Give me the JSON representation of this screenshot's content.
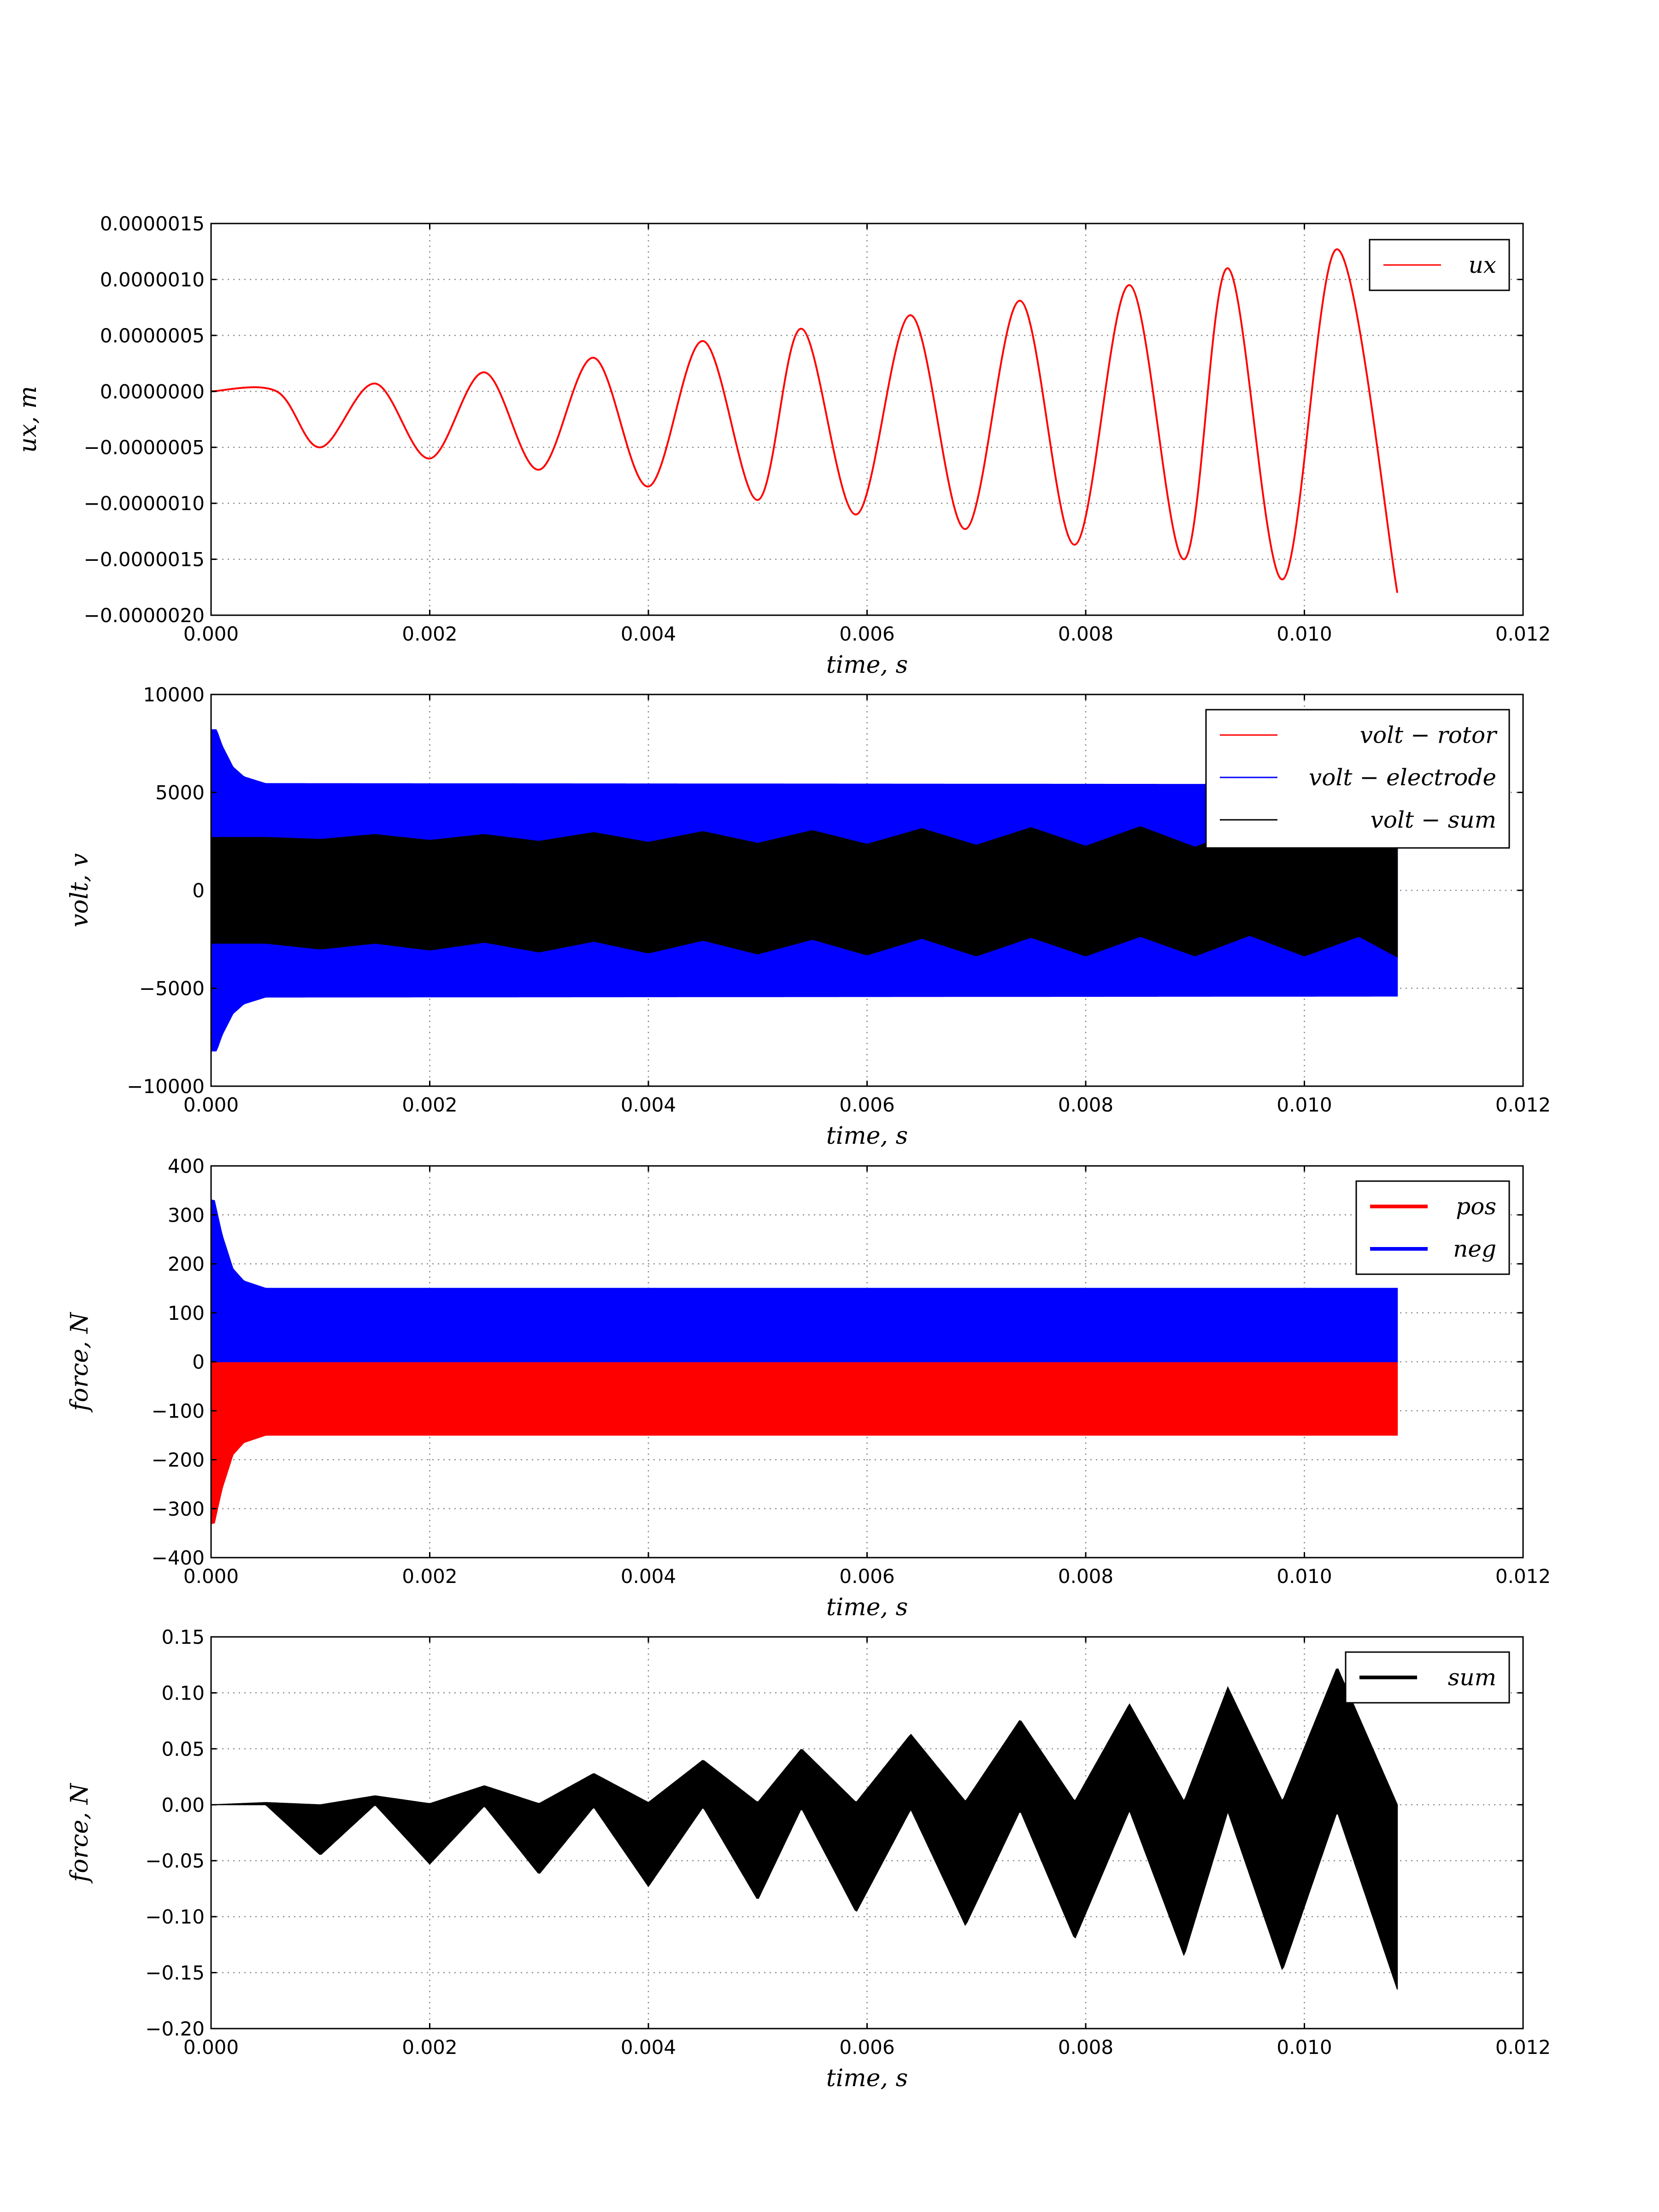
{
  "chart_data": [
    {
      "type": "line",
      "xlabel": "time, s",
      "ylabel": "ux, m",
      "xlim": [
        0,
        0.012
      ],
      "ylim": [
        -2e-06,
        1.5e-06
      ],
      "x_ticks": [
        "0.000",
        "0.002",
        "0.004",
        "0.006",
        "0.008",
        "0.010",
        "0.012"
      ],
      "y_ticks": [
        "0.0000015",
        "0.0000010",
        "0.0000005",
        "0.0000000",
        "−0.0000005",
        "−0.0000010",
        "−0.0000015",
        "−0.0000020"
      ],
      "grid": true,
      "legend_position": "top-right",
      "series": [
        {
          "name": "ux",
          "color": "#ff0000",
          "style": "line",
          "x": [
            0,
            0.0006,
            0.001,
            0.0015,
            0.002,
            0.0025,
            0.003,
            0.0035,
            0.004,
            0.0045,
            0.005,
            0.0054,
            0.0059,
            0.0064,
            0.0069,
            0.0074,
            0.0079,
            0.0084,
            0.0089,
            0.0093,
            0.0098,
            0.0103,
            0.01085
          ],
          "y": [
            0,
            0,
            -5e-07,
            7e-08,
            -6e-07,
            1.7e-07,
            -7e-07,
            3e-07,
            -8.5e-07,
            4.5e-07,
            -9.7e-07,
            5.6e-07,
            -1.1e-06,
            6.8e-07,
            -1.23e-06,
            8.1e-07,
            -1.37e-06,
            9.5e-07,
            -1.5e-06,
            1.1e-06,
            -1.68e-06,
            1.27e-06,
            -1.8e-06
          ]
        }
      ]
    },
    {
      "type": "line",
      "xlabel": "time, s",
      "ylabel": "volt, v",
      "xlim": [
        0,
        0.012
      ],
      "ylim": [
        -10000,
        10000
      ],
      "x_ticks": [
        "0.000",
        "0.002",
        "0.004",
        "0.006",
        "0.008",
        "0.010",
        "0.012"
      ],
      "y_ticks": [
        "10000",
        "5000",
        "0",
        "−5000",
        "−10000"
      ],
      "grid": true,
      "legend_position": "top-right",
      "series": [
        {
          "name": "volt − rotor",
          "color": "#ff0000",
          "style": "oscillation-band",
          "x": [
            0,
            0.01085
          ],
          "y_upper": [
            0,
            0
          ],
          "y_lower": [
            0,
            0
          ]
        },
        {
          "name": "volt − electrode",
          "color": "#0000ff",
          "style": "oscillation-band",
          "x": [
            0,
            5e-05,
            0.0001,
            0.0002,
            0.0003,
            0.0005,
            0.01085
          ],
          "y_upper": [
            8200,
            8200,
            7400,
            6300,
            5800,
            5450,
            5400
          ],
          "y_lower": [
            -8200,
            -8200,
            -7400,
            -6300,
            -5800,
            -5450,
            -5400
          ]
        },
        {
          "name": "volt − sum",
          "color": "#000000",
          "style": "oscillation-band",
          "x": [
            0,
            0.0005,
            0.001,
            0.0015,
            0.002,
            0.0025,
            0.003,
            0.0035,
            0.004,
            0.0045,
            0.005,
            0.0055,
            0.006,
            0.0065,
            0.007,
            0.0075,
            0.008,
            0.0085,
            0.009,
            0.0095,
            0.01,
            0.0105,
            0.01085
          ],
          "y_upper": [
            2700,
            2700,
            2600,
            2850,
            2550,
            2850,
            2500,
            2950,
            2450,
            3000,
            2400,
            3050,
            2350,
            3150,
            2300,
            3200,
            2250,
            3250,
            2200,
            3250,
            2150,
            3200,
            2300
          ],
          "y_lower": [
            -2700,
            -2700,
            -3000,
            -2700,
            -3050,
            -2650,
            -3150,
            -2600,
            -3200,
            -2550,
            -3250,
            -2500,
            -3300,
            -2450,
            -3350,
            -2400,
            -3350,
            -2350,
            -3350,
            -2300,
            -3350,
            -2350,
            -3400
          ]
        }
      ]
    },
    {
      "type": "area",
      "xlabel": "time, s",
      "ylabel": "force, N",
      "xlim": [
        0,
        0.012
      ],
      "ylim": [
        -400,
        400
      ],
      "x_ticks": [
        "0.000",
        "0.002",
        "0.004",
        "0.006",
        "0.008",
        "0.010",
        "0.012"
      ],
      "y_ticks": [
        "400",
        "300",
        "200",
        "100",
        "0",
        "−100",
        "−200",
        "−300",
        "−400"
      ],
      "grid": true,
      "legend_position": "top-right",
      "series": [
        {
          "name": "pos",
          "color": "#ff0000",
          "style": "oscillation-band",
          "x": [
            0,
            3e-05,
            0.0001,
            0.0002,
            0.0003,
            0.0005,
            0.01085
          ],
          "y_upper": [
            0,
            0,
            0,
            0,
            0,
            0,
            0
          ],
          "y_lower": [
            -330,
            -330,
            -260,
            -190,
            -165,
            -150,
            -150
          ]
        },
        {
          "name": "neg",
          "color": "#0000ff",
          "style": "oscillation-band",
          "x": [
            0,
            3e-05,
            0.0001,
            0.0002,
            0.0003,
            0.0005,
            0.01085
          ],
          "y_upper": [
            330,
            330,
            260,
            190,
            165,
            150,
            150
          ],
          "y_lower": [
            0,
            0,
            0,
            0,
            0,
            0,
            0
          ]
        }
      ]
    },
    {
      "type": "area",
      "xlabel": "time, s",
      "ylabel": "force, N",
      "xlim": [
        0,
        0.012
      ],
      "ylim": [
        -0.2,
        0.15
      ],
      "x_ticks": [
        "0.000",
        "0.002",
        "0.004",
        "0.006",
        "0.008",
        "0.010",
        "0.012"
      ],
      "y_ticks": [
        "0.15",
        "0.10",
        "0.05",
        "0.00",
        "−0.05",
        "−0.10",
        "−0.15",
        "−0.20"
      ],
      "grid": true,
      "legend_position": "top-right",
      "series": [
        {
          "name": "sum",
          "color": "#000000",
          "style": "oscillation-band",
          "x": [
            0,
            0.0005,
            0.001,
            0.0015,
            0.002,
            0.0025,
            0.003,
            0.0035,
            0.004,
            0.0045,
            0.005,
            0.0054,
            0.0059,
            0.0064,
            0.0069,
            0.0074,
            0.0079,
            0.0084,
            0.0089,
            0.0093,
            0.0098,
            0.0103,
            0.01085
          ],
          "y_upper": [
            0,
            0.002,
            0,
            0.008,
            0.001,
            0.017,
            0.001,
            0.028,
            0.002,
            0.04,
            0.002,
            0.05,
            0.002,
            0.063,
            0.003,
            0.076,
            0.003,
            0.09,
            0.003,
            0.105,
            0.003,
            0.123,
            0
          ],
          "y_lower": [
            0,
            0,
            -0.045,
            0,
            -0.053,
            -0.001,
            -0.062,
            -0.002,
            -0.073,
            -0.002,
            -0.085,
            -0.003,
            -0.096,
            -0.004,
            -0.108,
            -0.005,
            -0.12,
            -0.005,
            -0.135,
            -0.006,
            -0.148,
            -0.006,
            -0.165
          ]
        }
      ]
    }
  ]
}
